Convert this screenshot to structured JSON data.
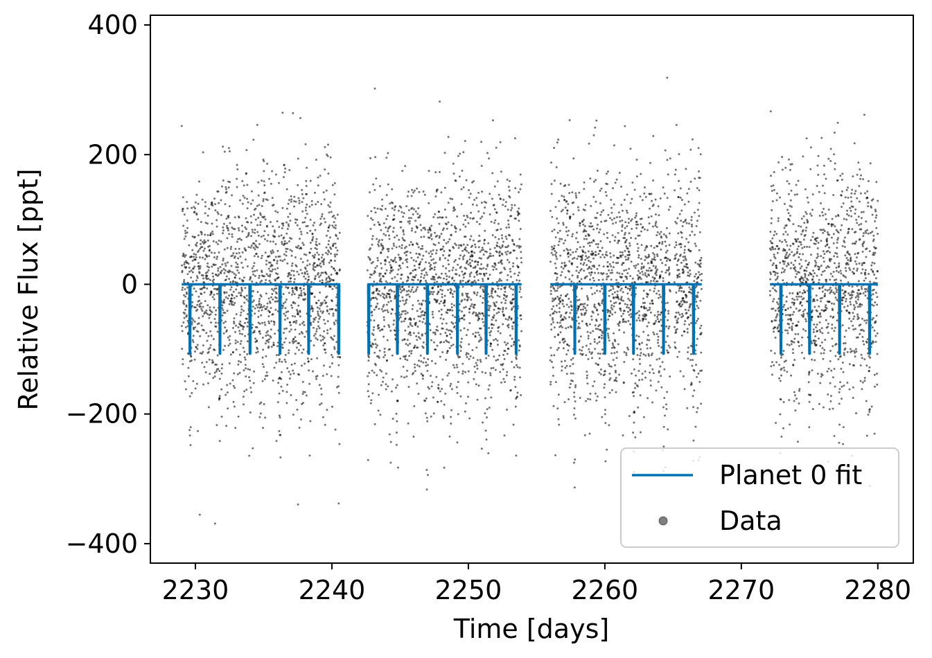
{
  "chart_data": {
    "type": "scatter",
    "title": "",
    "xlabel": "Time [days]",
    "ylabel": "Relative Flux [ppt]",
    "xlim": [
      2226.7,
      2282.6
    ],
    "ylim": [
      -430,
      415
    ],
    "xticks": [
      2230,
      2240,
      2250,
      2260,
      2270,
      2280
    ],
    "yticks": [
      -400,
      -200,
      0,
      200,
      400
    ],
    "xtick_labels": [
      "2230",
      "2240",
      "2250",
      "2260",
      "2270",
      "2280"
    ],
    "ytick_labels": [
      "−400",
      "−200",
      "0",
      "200",
      "400"
    ],
    "grid": false,
    "legend": {
      "position": "lower-right",
      "entries": [
        {
          "label": "Planet 0 fit",
          "kind": "line",
          "color": "#0072b2"
        },
        {
          "label": "Data",
          "kind": "point",
          "color": "#000000"
        }
      ]
    },
    "series": [
      {
        "name": "Data",
        "kind": "scatter",
        "color": "#000000",
        "noise_sigma_ppt": 88,
        "segments": [
          [
            2229.0,
            2240.6
          ],
          [
            2242.6,
            2253.9
          ],
          [
            2256.0,
            2264.8
          ],
          [
            2265.1,
            2267.1
          ],
          [
            2272.1,
            2280.0
          ]
        ]
      },
      {
        "name": "Planet 0 fit",
        "kind": "line",
        "color": "#0072b2",
        "segments": [
          [
            2229.0,
            2240.6
          ],
          [
            2242.6,
            2253.9
          ],
          [
            2256.0,
            2267.1
          ],
          [
            2272.1,
            2280.0
          ]
        ],
        "baseline": 0,
        "transit_depth": -107,
        "transit_times": [
          2229.6,
          2231.8,
          2234.0,
          2236.2,
          2238.3,
          2240.5,
          2242.7,
          2244.8,
          2247.0,
          2249.2,
          2251.3,
          2253.5,
          2257.8,
          2260.0,
          2262.1,
          2264.3,
          2266.5,
          2272.9,
          2275.0,
          2277.2,
          2279.4
        ]
      }
    ]
  }
}
